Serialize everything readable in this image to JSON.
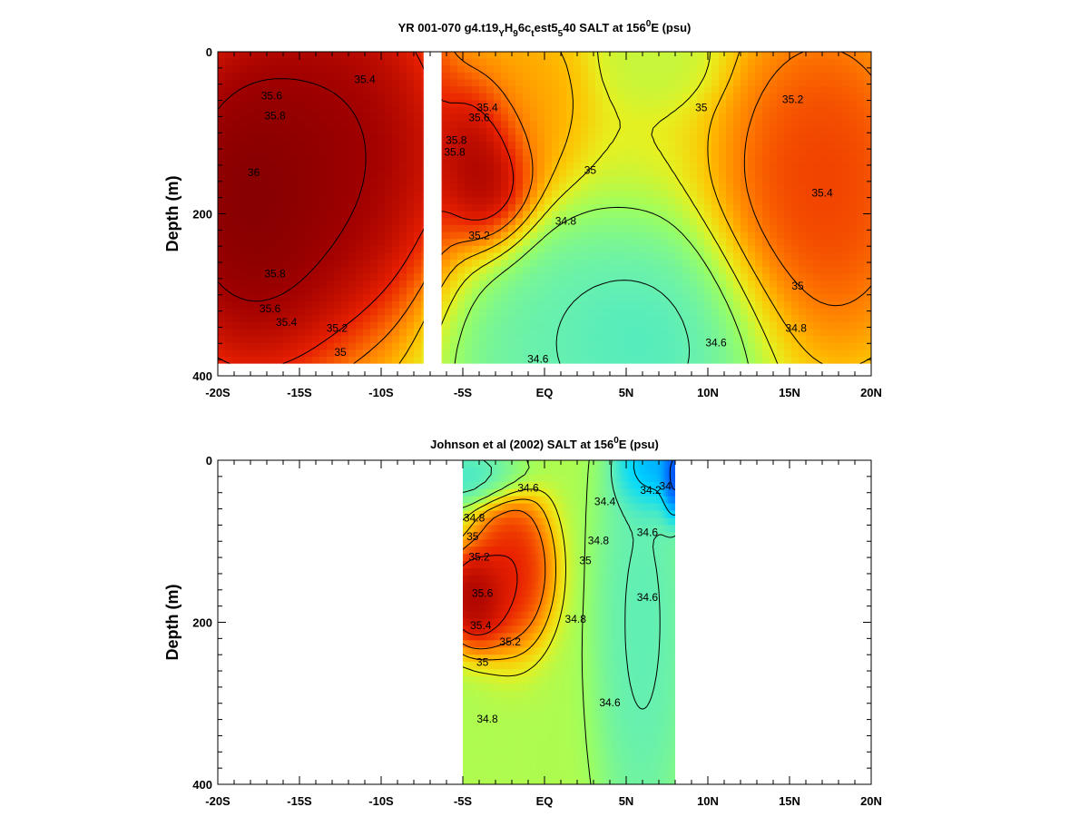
{
  "chart_data": [
    {
      "type": "heatmap",
      "id": "model",
      "title": "YR 001-070 g4.t19",
      "xlabel": "",
      "ylabel": "Depth (m)",
      "xlim": [
        -20,
        20
      ],
      "ylim": [
        400,
        0
      ],
      "x_ticks": [
        -20,
        -15,
        -10,
        -5,
        0,
        5,
        10,
        15,
        20
      ],
      "x_tick_labels": [
        "-20S",
        "-15S",
        "-10S",
        "-5S",
        "EQ",
        "5N",
        "10N",
        "15N",
        "20N"
      ],
      "y_ticks": [
        0,
        200,
        400
      ],
      "y_tick_labels": [
        "0",
        "200",
        "400"
      ],
      "data_extent": {
        "x": [
          -20,
          20
        ],
        "y": [
          0,
          385
        ]
      },
      "gap": [
        -7.4,
        -6.3
      ],
      "color_range": [
        34.0,
        36.0
      ],
      "colors": [
        "#0a1a8a",
        "#0060ff",
        "#00d8ff",
        "#66f0b0",
        "#9cff60",
        "#e6f020",
        "#ffc000",
        "#ff7a00",
        "#e82000",
        "#a00000",
        "#600000"
      ],
      "centers": [
        {
          "x": -18,
          "y": 180,
          "value": 36.0,
          "sx": 5.0,
          "sy": 170
        },
        {
          "x": -12,
          "y": 120,
          "value": 35.9,
          "sx": 5.0,
          "sy": 160
        },
        {
          "x": -3.5,
          "y": 135,
          "value": 35.9,
          "sx": 2.2,
          "sy": 75
        },
        {
          "x": -1,
          "y": 60,
          "value": 35.3,
          "sx": 2.5,
          "sy": 80
        },
        {
          "x": 17,
          "y": 160,
          "value": 35.6,
          "sx": 4.5,
          "sy": 150
        },
        {
          "x": 7,
          "y": 10,
          "value": 34.9,
          "sx": 2.5,
          "sy": 40
        },
        {
          "x": 5,
          "y": 360,
          "value": 34.5,
          "sx": 6.0,
          "sy": 110
        },
        {
          "x": 0,
          "y": 380,
          "value": 34.6,
          "sx": 4.0,
          "sy": 100
        }
      ],
      "background_value": 35.0,
      "levels": [
        34.6,
        34.8,
        35.0,
        35.2,
        35.4,
        35.6,
        35.8,
        36.0
      ],
      "contour_labels": [
        {
          "x": -11,
          "y": 35,
          "text": "35.4"
        },
        {
          "x": -16.7,
          "y": 55,
          "text": "35.6"
        },
        {
          "x": -16.5,
          "y": 80,
          "text": "35.8"
        },
        {
          "x": -17.8,
          "y": 150,
          "text": "36"
        },
        {
          "x": -16.5,
          "y": 275,
          "text": "35.8"
        },
        {
          "x": -16.8,
          "y": 318,
          "text": "35.6"
        },
        {
          "x": -15.8,
          "y": 335,
          "text": "35.4"
        },
        {
          "x": -12.7,
          "y": 342,
          "text": "35.2"
        },
        {
          "x": -12.5,
          "y": 372,
          "text": "35"
        },
        {
          "x": -3.5,
          "y": 70,
          "text": "35.4"
        },
        {
          "x": -4.0,
          "y": 82,
          "text": "35.6"
        },
        {
          "x": -5.4,
          "y": 110,
          "text": "35.8"
        },
        {
          "x": -5.5,
          "y": 125,
          "text": "35.8"
        },
        {
          "x": 2.8,
          "y": 147,
          "text": "35"
        },
        {
          "x": 1.3,
          "y": 210,
          "text": "34.8"
        },
        {
          "x": -4.0,
          "y": 228,
          "text": "35.2"
        },
        {
          "x": 9.6,
          "y": 70,
          "text": "35"
        },
        {
          "x": 15.2,
          "y": 60,
          "text": "35.2"
        },
        {
          "x": 17.0,
          "y": 175,
          "text": "35.4"
        },
        {
          "x": 15.5,
          "y": 290,
          "text": "35"
        },
        {
          "x": 15.4,
          "y": 342,
          "text": "34.8"
        },
        {
          "x": 10.5,
          "y": 360,
          "text": "34.6"
        },
        {
          "x": -0.4,
          "y": 380,
          "text": "34.6"
        }
      ]
    },
    {
      "type": "heatmap",
      "id": "obs",
      "title": "Johnson et al (2002) SALT at 156",
      "xlabel": "",
      "ylabel": "Depth (m)",
      "xlim": [
        -20,
        20
      ],
      "ylim": [
        400,
        0
      ],
      "x_ticks": [
        -20,
        -15,
        -10,
        -5,
        0,
        5,
        10,
        15,
        20
      ],
      "x_tick_labels": [
        "-20S",
        "-15S",
        "-10S",
        "-5S",
        "EQ",
        "5N",
        "10N",
        "15N",
        "20N"
      ],
      "y_ticks": [
        0,
        200,
        400
      ],
      "y_tick_labels": [
        "0",
        "200",
        "400"
      ],
      "data_extent": {
        "x": [
          -5,
          8
        ],
        "y": [
          0,
          400
        ]
      },
      "gap": null,
      "color_range": [
        34.0,
        36.0
      ],
      "colors": [
        "#0a1a8a",
        "#0060ff",
        "#00d8ff",
        "#66f0b0",
        "#9cff60",
        "#e6f020",
        "#ffc000",
        "#ff7a00",
        "#e82000",
        "#a00000",
        "#600000"
      ],
      "centers": [
        {
          "x": -4.2,
          "y": 170,
          "value": 35.9,
          "sx": 1.6,
          "sy": 45
        },
        {
          "x": -2.0,
          "y": 135,
          "value": 35.7,
          "sx": 1.8,
          "sy": 70
        },
        {
          "x": 7.9,
          "y": 20,
          "value": 34.0,
          "sx": 0.6,
          "sy": 40
        },
        {
          "x": 6.5,
          "y": 10,
          "value": 34.2,
          "sx": 1.5,
          "sy": 40
        },
        {
          "x": 6.0,
          "y": 200,
          "value": 34.55,
          "sx": 2.0,
          "sy": 200
        },
        {
          "x": -4.5,
          "y": 20,
          "value": 34.5,
          "sx": 2.5,
          "sy": 25
        }
      ],
      "background_value": 34.85,
      "levels": [
        34.2,
        34.4,
        34.6,
        34.8,
        35.0,
        35.2,
        35.4,
        35.6
      ],
      "contour_labels": [
        {
          "x": -1.0,
          "y": 35,
          "text": "34.6"
        },
        {
          "x": 3.7,
          "y": 52,
          "text": "34.4"
        },
        {
          "x": 6.5,
          "y": 38,
          "text": "34.2"
        },
        {
          "x": 7.4,
          "y": 33,
          "text": "34"
        },
        {
          "x": -4.3,
          "y": 72,
          "text": "34.8"
        },
        {
          "x": 6.3,
          "y": 90,
          "text": "34.6"
        },
        {
          "x": -4.4,
          "y": 95,
          "text": "35"
        },
        {
          "x": 3.3,
          "y": 100,
          "text": "34.8"
        },
        {
          "x": -4.0,
          "y": 120,
          "text": "35.2"
        },
        {
          "x": 2.5,
          "y": 125,
          "text": "35"
        },
        {
          "x": -3.8,
          "y": 165,
          "text": "35.6"
        },
        {
          "x": 6.3,
          "y": 170,
          "text": "34.6"
        },
        {
          "x": 1.9,
          "y": 197,
          "text": "34.8"
        },
        {
          "x": -3.9,
          "y": 205,
          "text": "35.4"
        },
        {
          "x": -2.1,
          "y": 225,
          "text": "35.2"
        },
        {
          "x": -3.8,
          "y": 250,
          "text": "35"
        },
        {
          "x": 4.0,
          "y": 300,
          "text": "34.6"
        },
        {
          "x": -3.5,
          "y": 320,
          "text": "34.8"
        }
      ]
    }
  ],
  "titles": {
    "top": {
      "text": "YR 001-070 g4.t19",
      "sub1": "Y",
      "mid1": "H",
      "sub2": "9",
      "mid2": "6c",
      "sub3": "t",
      "mid3": "est5",
      "sub4": "5",
      "mid4": "40 SALT at 156",
      "sup": "0",
      "tail": "E (psu)"
    },
    "bottom": {
      "text": "Johnson et al (2002) SALT at 156",
      "sup": "0",
      "tail": "E (psu)"
    }
  }
}
